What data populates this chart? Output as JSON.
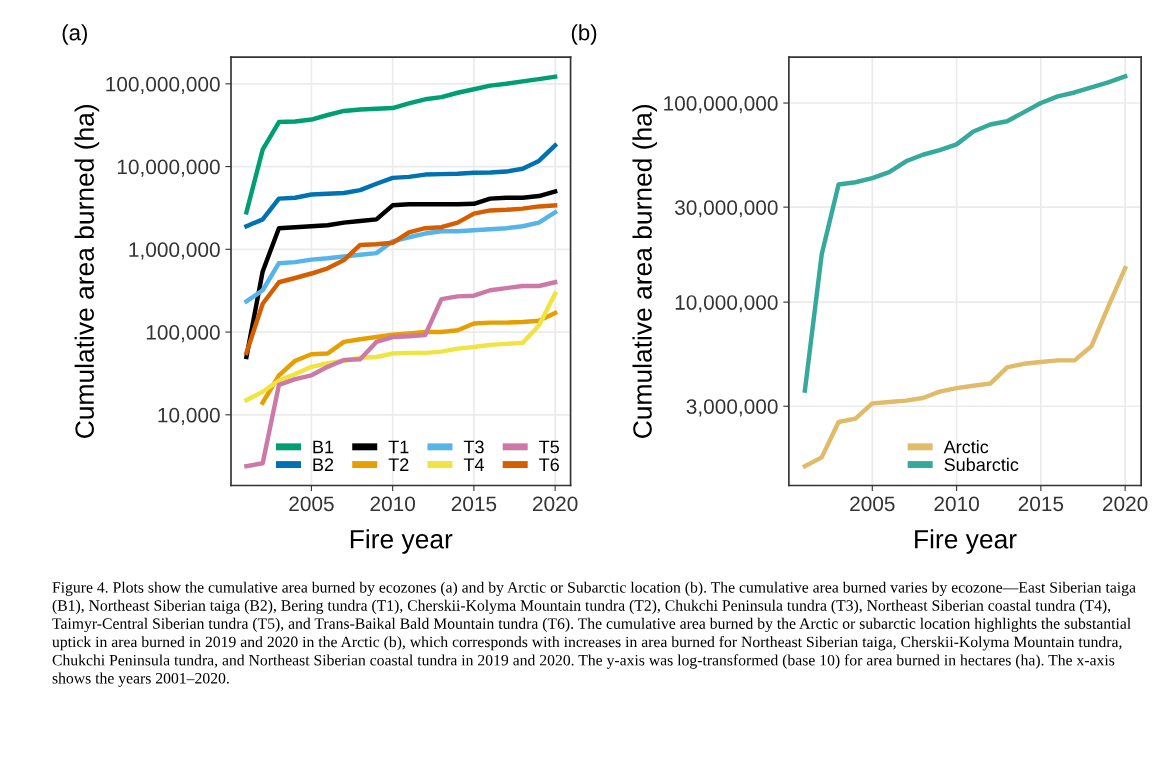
{
  "chart_data": [
    {
      "type": "line",
      "title": "(a)",
      "xlabel": "Fire year",
      "ylabel": "Cumulative area burned (ha)",
      "log": "y",
      "x": [
        2001,
        2002,
        2003,
        2004,
        2005,
        2006,
        2007,
        2008,
        2009,
        2010,
        2011,
        2012,
        2013,
        2014,
        2015,
        2016,
        2017,
        2018,
        2019,
        2020
      ],
      "xlim": [
        2000.05,
        2020.95
      ],
      "xticks": [
        2005,
        2010,
        2015,
        2020
      ],
      "ylim": [
        1400,
        210000000
      ],
      "yticks": [
        {
          "value": 10000,
          "label": "10,000"
        },
        {
          "value": 100000,
          "label": "100,000"
        },
        {
          "value": 1000000,
          "label": "1,000,000"
        },
        {
          "value": 10000000,
          "label": "10,000,000"
        },
        {
          "value": 100000000,
          "label": "100,000,000"
        }
      ],
      "grid": true,
      "legend": "bottom right",
      "line_style": "solid",
      "series": [
        {
          "name": "B1",
          "color": "#009e73",
          "values": [
            2800000,
            16000000,
            34500000,
            35000000,
            37000000,
            42000000,
            47000000,
            49000000,
            50000000,
            51000000,
            58000000,
            65000000,
            69000000,
            78000000,
            86000000,
            95000000,
            100000000,
            107000000,
            114000000,
            122000000
          ]
        },
        {
          "name": "B2",
          "color": "#0072b2",
          "values": [
            1900000,
            2300000,
            4100000,
            4200000,
            4600000,
            4700000,
            4800000,
            5200000,
            6200000,
            7300000,
            7500000,
            8000000,
            8100000,
            8200000,
            8400000,
            8500000,
            8700000,
            9400000,
            11700000,
            18000000
          ]
        },
        {
          "name": "T1",
          "color": "#000000",
          "values": [
            50000,
            540000,
            1800000,
            1850000,
            1900000,
            1950000,
            2100000,
            2200000,
            2300000,
            3400000,
            3500000,
            3500000,
            3500000,
            3500000,
            3550000,
            4100000,
            4200000,
            4200000,
            4400000,
            5000000
          ]
        },
        {
          "name": "T2",
          "color": "#e69f00",
          "values": [
            null,
            14000,
            30000,
            45000,
            54000,
            55000,
            76000,
            82000,
            87000,
            93000,
            96000,
            100000,
            100000,
            105000,
            127000,
            130000,
            130000,
            132000,
            137000,
            170000
          ]
        },
        {
          "name": "T3",
          "color": "#56b4e9",
          "values": [
            235000,
            320000,
            680000,
            700000,
            750000,
            780000,
            820000,
            860000,
            900000,
            1250000,
            1400000,
            1550000,
            1650000,
            1650000,
            1700000,
            1750000,
            1800000,
            1900000,
            2100000,
            2800000
          ]
        },
        {
          "name": "T4",
          "color": "#f0e442",
          "values": [
            15000,
            19000,
            26000,
            31000,
            38000,
            42000,
            45000,
            49000,
            50000,
            55000,
            56000,
            56000,
            58000,
            63000,
            66000,
            70000,
            72000,
            74000,
            120000,
            290000
          ]
        },
        {
          "name": "T5",
          "color": "#cc79a7",
          "values": [
            2400,
            2600,
            23000,
            27000,
            30000,
            38000,
            46000,
            47000,
            76000,
            87000,
            89000,
            92000,
            250000,
            270000,
            275000,
            320000,
            340000,
            360000,
            360000,
            400000
          ]
        },
        {
          "name": "T6",
          "color": "#d55e00",
          "values": [
            56000,
            220000,
            400000,
            450000,
            510000,
            590000,
            740000,
            1130000,
            1150000,
            1200000,
            1600000,
            1800000,
            1850000,
            2100000,
            2700000,
            2950000,
            3000000,
            3100000,
            3300000,
            3400000
          ]
        }
      ]
    },
    {
      "type": "line",
      "title": "(b)",
      "xlabel": "Fire year",
      "ylabel": "Cumulative area burned (ha)",
      "log": "y",
      "x": [
        2001,
        2002,
        2003,
        2004,
        2005,
        2006,
        2007,
        2008,
        2009,
        2010,
        2011,
        2012,
        2013,
        2014,
        2015,
        2016,
        2017,
        2018,
        2019,
        2020
      ],
      "xlim": [
        2000.05,
        2020.95
      ],
      "xticks": [
        2005,
        2010,
        2015,
        2020
      ],
      "ylim": [
        1200000,
        170000000
      ],
      "yticks": [
        {
          "value": 3000000,
          "label": "3,000,000"
        },
        {
          "value": 10000000,
          "label": "10,000,000"
        },
        {
          "value": 30000000,
          "label": "30,000,000"
        },
        {
          "value": 100000000,
          "label": "100,000,000"
        }
      ],
      "grid": true,
      "legend": "bottom",
      "line_style": "solid",
      "series": [
        {
          "name": "Arctic",
          "color": "#e0bb6a",
          "values": [
            1500000,
            1660000,
            2500000,
            2600000,
            3100000,
            3150000,
            3200000,
            3300000,
            3550000,
            3700000,
            3800000,
            3900000,
            4700000,
            4900000,
            5000000,
            5100000,
            5100000,
            6000000,
            9500000,
            14800000
          ]
        },
        {
          "name": "Subarctic",
          "color": "#35a99a",
          "values": [
            3600000,
            17400000,
            39000000,
            40000000,
            42000000,
            45000000,
            51000000,
            55000000,
            58000000,
            62000000,
            72000000,
            78000000,
            81000000,
            90000000,
            100000000,
            108000000,
            113000000,
            120000000,
            127000000,
            136000000
          ]
        }
      ],
      "annotations": [
        "Figure 4. Plots show the cumulative area burned by ecozones (a) and by Arctic or Subarctic location (b). The cumulative area burned varies by ecozone—East Siberian taiga (B1), Northeast Siberian taiga (B2), Bering tundra (T1), Cherskii-Kolyma Mountain tundra (T2), Chukchi Peninsula tundra (T3), Northeast Siberian coastal tundra (T4), Taimyr-Central Siberian tundra (T5), and Trans-Baikal Bald Mountain tundra (T6). The cumulative area burned by the Arctic or subarctic location highlights the substantial uptick in area burned in 2019 and 2020 in the Arctic (b), which corresponds with increases in area burned for Northeast Siberian taiga, Cherskii-Kolyma Mountain tundra, Chukchi Peninsula tundra, and Northeast Siberian coastal tundra in 2019 and 2020. The y-axis was log-transformed (base 10) for area burned in hectares (ha). The x-axis shows the years 2001–2020."
      ]
    }
  ]
}
